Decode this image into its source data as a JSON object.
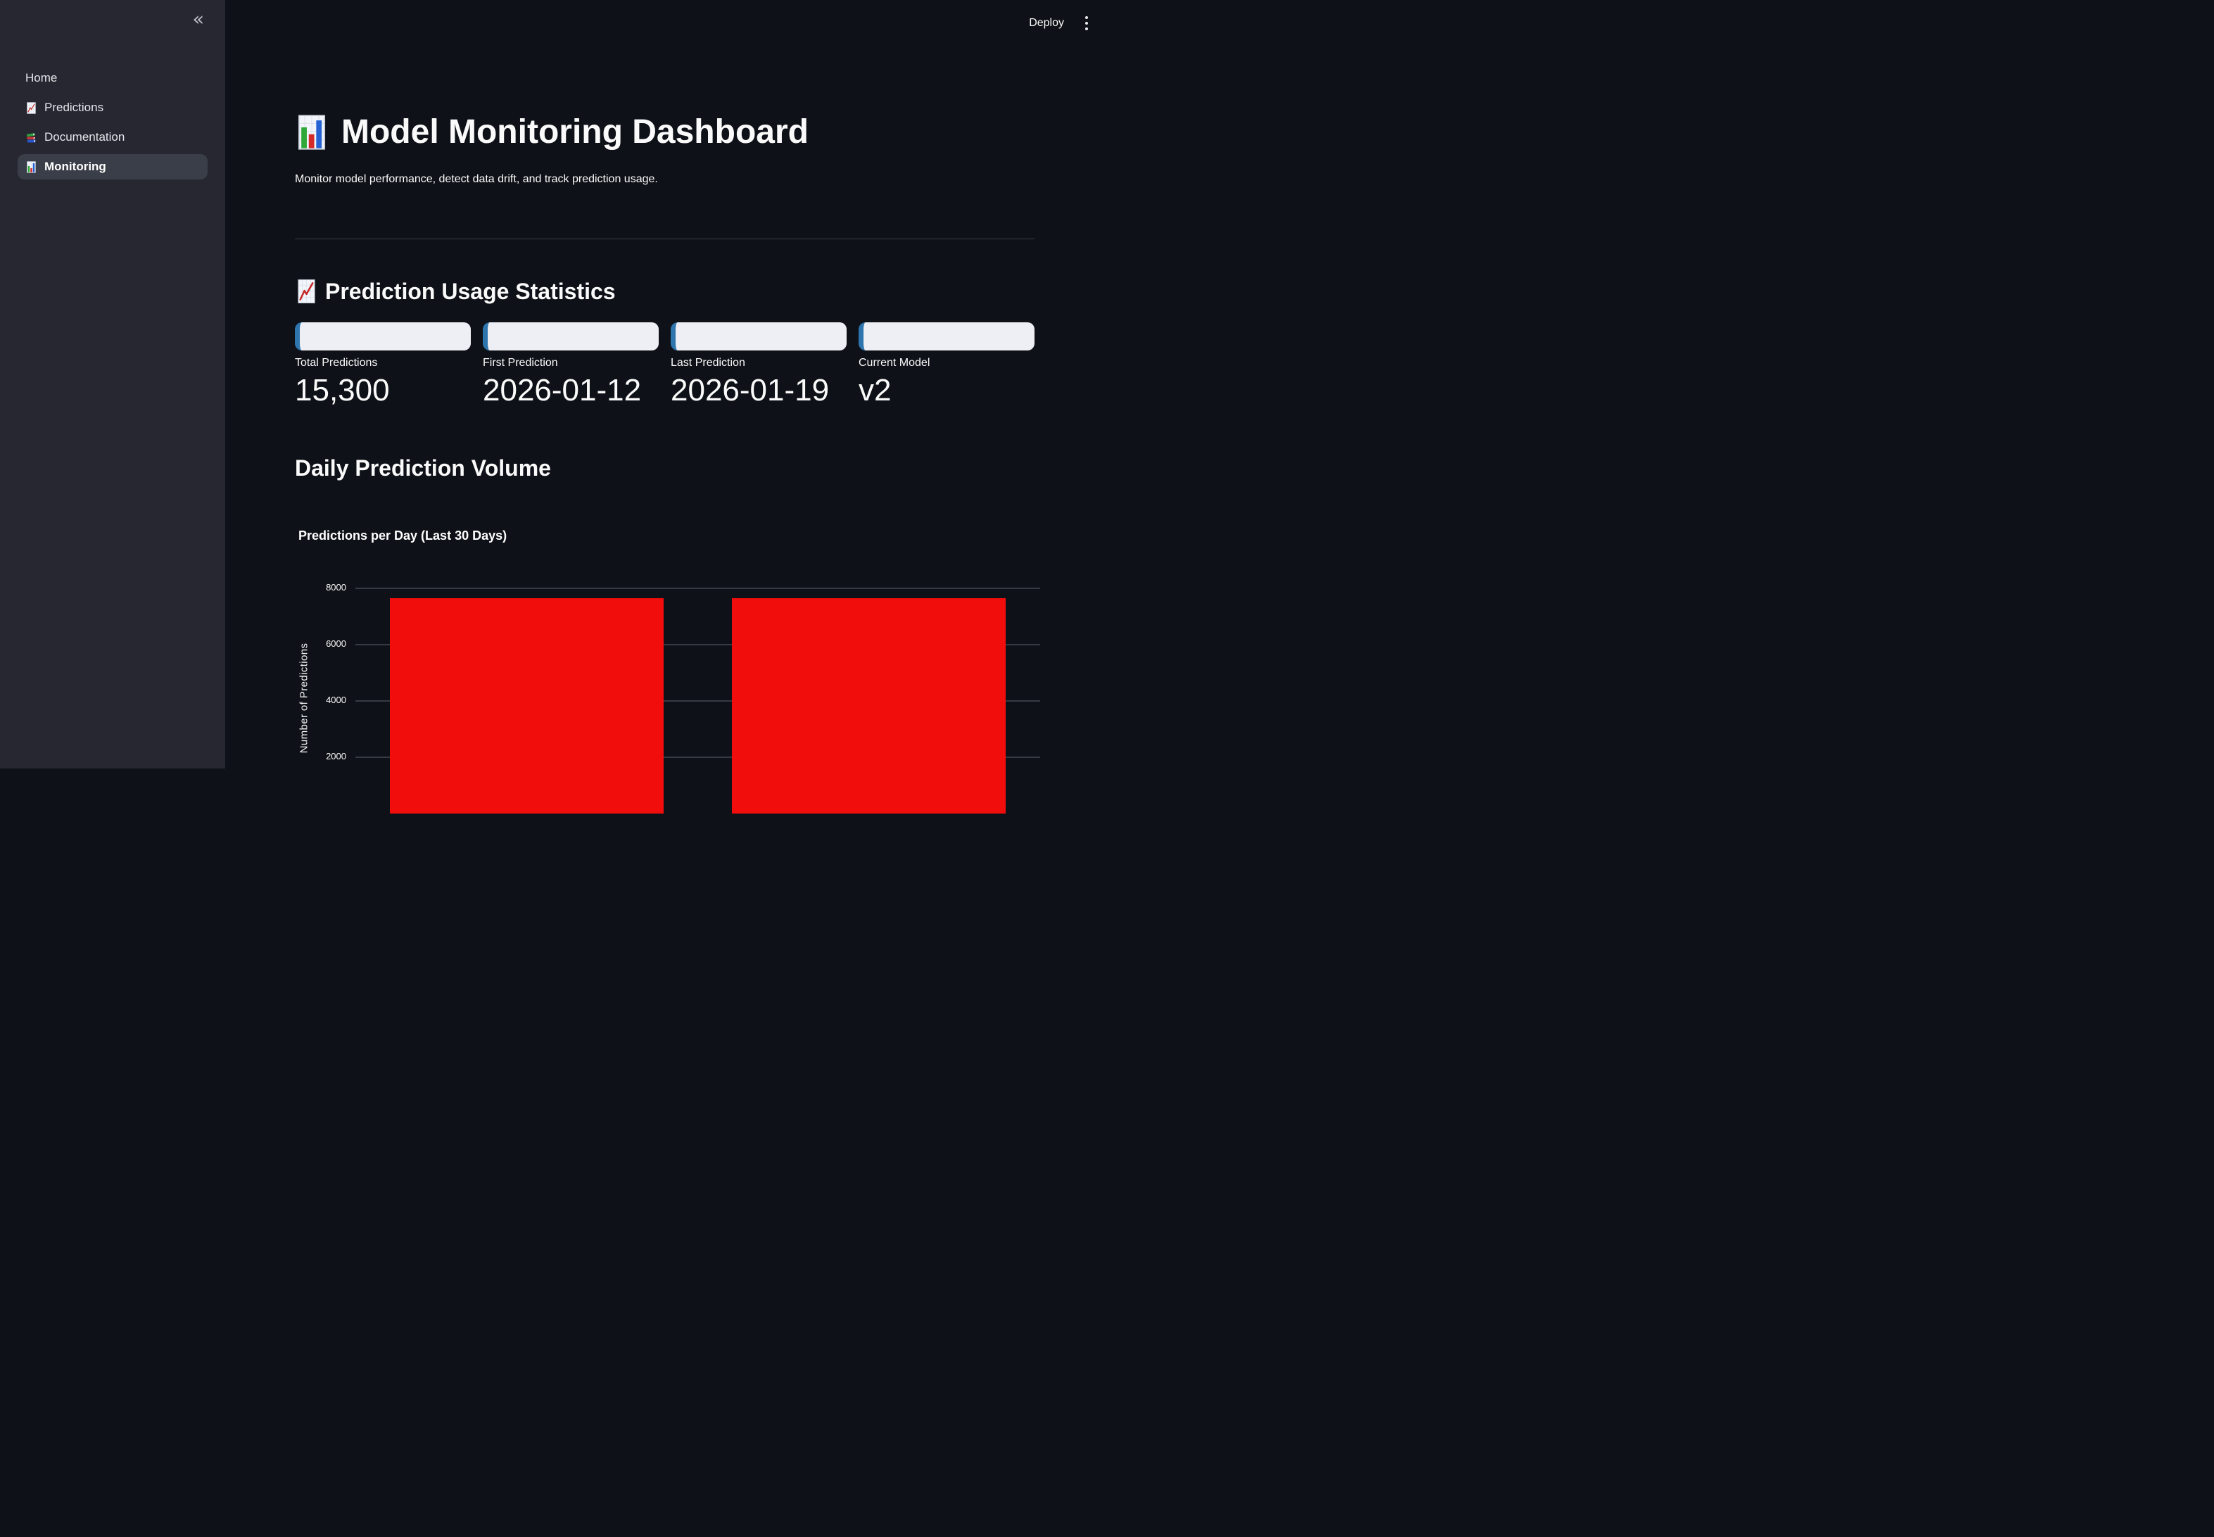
{
  "header": {
    "deploy_label": "Deploy"
  },
  "sidebar": {
    "collapse_icon": "«",
    "items": [
      {
        "label": "Home",
        "icon": "none",
        "active": false
      },
      {
        "label": "Predictions",
        "icon": "chart-increasing",
        "active": false
      },
      {
        "label": "Documentation",
        "icon": "books",
        "active": false
      },
      {
        "label": "Monitoring",
        "icon": "bar-chart",
        "active": true
      }
    ]
  },
  "main": {
    "title": "Model Monitoring Dashboard",
    "title_icon": "bar-chart-emoji",
    "subtitle": "Monitor model performance, detect data drift, and track prediction usage.",
    "usage_section": {
      "heading": "Prediction Usage Statistics",
      "heading_icon": "chart-increasing-emoji"
    },
    "volume_section": {
      "heading": "Daily Prediction Volume"
    },
    "metrics": [
      {
        "label": "Total Predictions",
        "value": "15,300"
      },
      {
        "label": "First Prediction",
        "value": "2026-01-12"
      },
      {
        "label": "Last Prediction",
        "value": "2026-01-19"
      },
      {
        "label": "Current Model",
        "value": "v2"
      }
    ]
  },
  "chart_data": {
    "type": "bar",
    "title": "Predictions per Day (Last 30 Days)",
    "ylabel": "Number of Predictions",
    "categories": [
      "",
      ""
    ],
    "values": [
      7650,
      7650
    ],
    "yticks": [
      2000,
      4000,
      6000,
      8000
    ],
    "ylim": [
      0,
      8400
    ],
    "grid": true,
    "legend": false,
    "bar_color": "#f20d0d"
  },
  "colors": {
    "app_bg": "#0e1117",
    "sidebar_bg": "#262730",
    "accent_blue": "#2e74ad",
    "metric_pill_bg": "#edeff4",
    "bar_red": "#f20d0d"
  }
}
